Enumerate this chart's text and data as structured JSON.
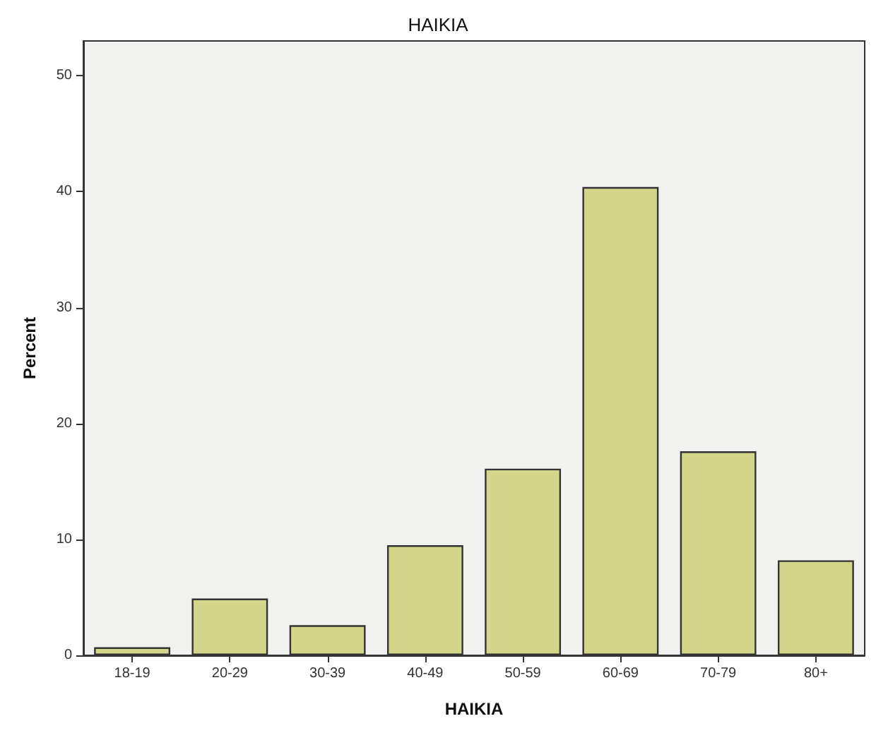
{
  "chart_data": {
    "type": "bar",
    "title": "HAIKIA",
    "xlabel": "HAIKIA",
    "ylabel": "Percent",
    "categories": [
      "18-19",
      "20-29",
      "30-39",
      "40-49",
      "50-59",
      "60-69",
      "70-79",
      "80+"
    ],
    "values": [
      0.7,
      4.9,
      2.6,
      9.5,
      16.1,
      40.4,
      17.6,
      8.2
    ],
    "color": "#d3d68a",
    "ylim": [
      0,
      53
    ],
    "yticks": [
      0,
      10,
      20,
      30,
      40,
      50
    ]
  }
}
